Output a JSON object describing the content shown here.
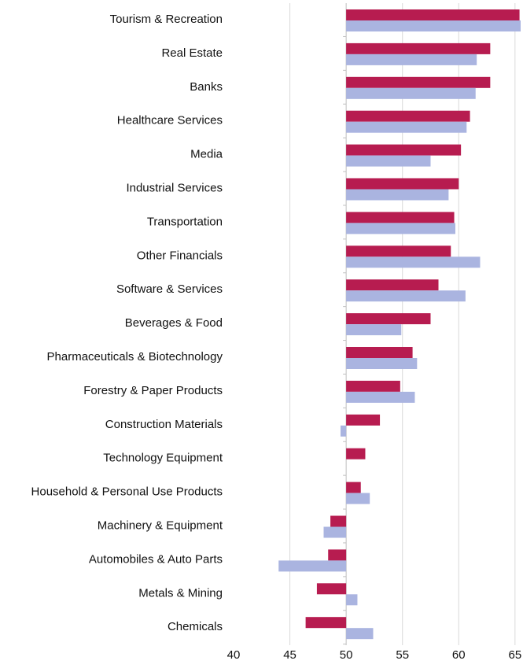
{
  "chart_data": {
    "type": "hbar",
    "categories": [
      "Tourism & Recreation",
      "Real Estate",
      "Banks",
      "Healthcare Services",
      "Media",
      "Industrial Services",
      "Transportation",
      "Other Financials",
      "Software & Services",
      "Beverages & Food",
      "Pharmaceuticals & Biotechnology",
      "Forestry & Paper Products",
      "Construction Materials",
      "Technology Equipment",
      "Household & Personal Use Products",
      "Machinery & Equipment",
      "Automobiles & Auto Parts",
      "Metals & Mining",
      "Chemicals"
    ],
    "series": [
      {
        "color": "#b71c50",
        "values": [
          65.4,
          62.8,
          62.8,
          61.0,
          60.2,
          60.0,
          59.6,
          59.3,
          58.2,
          57.5,
          55.9,
          54.8,
          53.0,
          51.7,
          51.3,
          48.6,
          48.4,
          47.4,
          46.4
        ]
      },
      {
        "color": "#aab4e0",
        "values": [
          65.5,
          61.6,
          61.5,
          60.7,
          57.5,
          59.1,
          59.7,
          61.9,
          60.6,
          54.9,
          56.3,
          56.1,
          49.5,
          50,
          52.1,
          48.0,
          44.0,
          51.0,
          52.4
        ]
      }
    ],
    "base": 50,
    "xlim": [
      40,
      65.5
    ],
    "xticks": [
      40,
      45,
      50,
      55,
      60,
      65
    ],
    "grid": true
  }
}
